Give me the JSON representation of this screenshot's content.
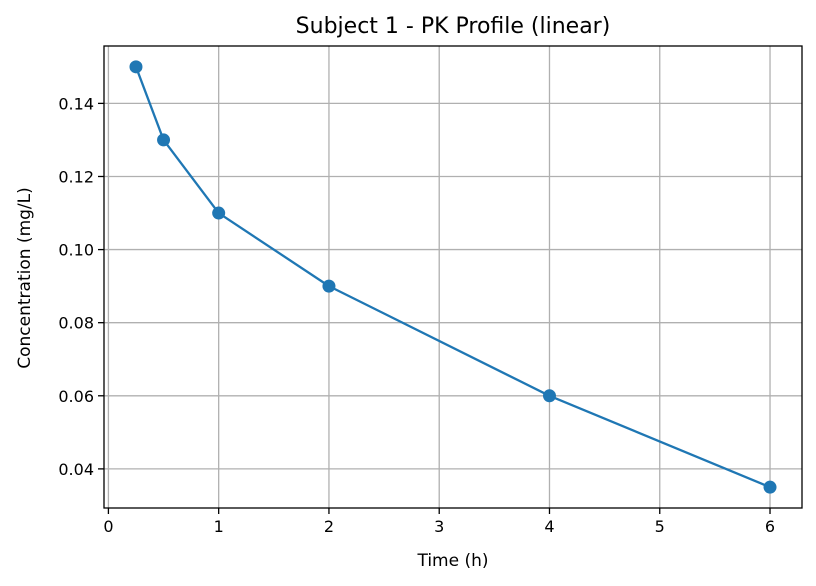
{
  "chart_data": {
    "type": "line",
    "title": "Subject 1 - PK Profile (linear)",
    "xlabel": "Time (h)",
    "ylabel": "Concentration (mg/L)",
    "x": [
      0.25,
      0.5,
      1,
      2,
      4,
      6
    ],
    "series": [
      {
        "values": [
          0.15,
          0.13,
          0.11,
          0.09,
          0.06,
          0.035
        ],
        "color": "#1f77b4"
      }
    ],
    "xlim": [
      -0.04,
      6.29
    ],
    "ylim": [
      0.0293,
      0.1557
    ],
    "xticks": [
      0,
      1,
      2,
      3,
      4,
      5,
      6
    ],
    "xtick_labels": [
      "0",
      "1",
      "2",
      "3",
      "4",
      "5",
      "6"
    ],
    "yticks": [
      0.04,
      0.06,
      0.08,
      0.1,
      0.12,
      0.14
    ],
    "ytick_labels": [
      "0.04",
      "0.06",
      "0.08",
      "0.10",
      "0.12",
      "0.14"
    ],
    "grid": true,
    "marker": "circle"
  }
}
